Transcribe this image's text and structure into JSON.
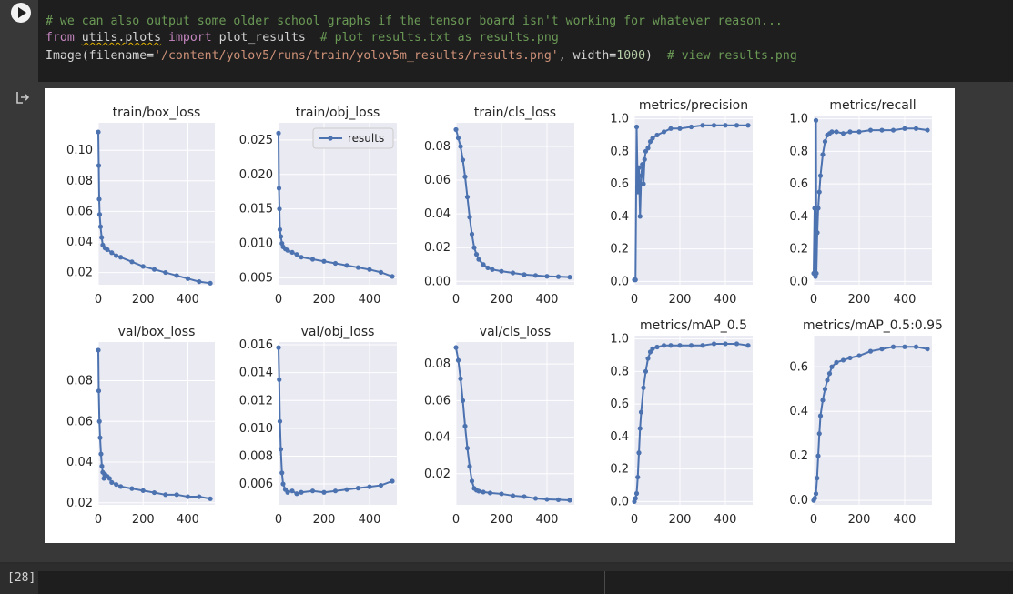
{
  "code_cell": {
    "run_label": "Run cell",
    "lines": [
      [
        {
          "t": "# we can also output some older school graphs if the tensor board isn't working for whatever reason...",
          "c": "cmt"
        }
      ],
      [
        {
          "t": "from",
          "c": "kw"
        },
        {
          "t": " "
        },
        {
          "t": "utils.plots",
          "c": "squig"
        },
        {
          "t": " "
        },
        {
          "t": "import",
          "c": "kw"
        },
        {
          "t": " plot_results  "
        },
        {
          "t": "# plot results.txt as results.png",
          "c": "cmt"
        }
      ],
      [
        {
          "t": "Image(filename="
        },
        {
          "t": "'/content/yolov5/runs/train/yolov5m_results/results.png'",
          "c": "str"
        },
        {
          "t": ", width="
        },
        {
          "t": "1000",
          "c": "num"
        },
        {
          "t": ")  "
        },
        {
          "t": "# view results.png",
          "c": "cmt"
        }
      ]
    ]
  },
  "next_cell": {
    "execution_count": "[28]"
  },
  "accent_color": "#4c72b0",
  "legend_label": "results",
  "chart_data": [
    {
      "type": "line",
      "title": "train/box_loss",
      "xlim": [
        0,
        520
      ],
      "ylim": [
        0.012,
        0.118
      ],
      "xticks": [
        0,
        200,
        400
      ],
      "yticks": [
        0.02,
        0.04,
        0.06,
        0.08,
        0.1
      ],
      "ytick_labels": [
        "0.02",
        "0.04",
        "0.06",
        "0.08",
        "0.10"
      ],
      "x": [
        0,
        2,
        4,
        6,
        10,
        15,
        20,
        30,
        40,
        60,
        80,
        100,
        150,
        200,
        250,
        300,
        350,
        400,
        450,
        500
      ],
      "values": [
        0.112,
        0.09,
        0.068,
        0.058,
        0.05,
        0.043,
        0.038,
        0.036,
        0.035,
        0.033,
        0.031,
        0.03,
        0.027,
        0.024,
        0.022,
        0.02,
        0.018,
        0.016,
        0.014,
        0.013
      ]
    },
    {
      "type": "line",
      "title": "train/obj_loss",
      "xlim": [
        0,
        520
      ],
      "ylim": [
        0.004,
        0.0275
      ],
      "xticks": [
        0,
        200,
        400
      ],
      "yticks": [
        0.005,
        0.01,
        0.015,
        0.02,
        0.025
      ],
      "ytick_labels": [
        "0.005",
        "0.010",
        "0.015",
        "0.020",
        "0.025"
      ],
      "x": [
        0,
        2,
        4,
        6,
        10,
        15,
        20,
        30,
        40,
        60,
        80,
        100,
        150,
        200,
        250,
        300,
        350,
        400,
        450,
        500
      ],
      "values": [
        0.026,
        0.018,
        0.015,
        0.012,
        0.011,
        0.01,
        0.0095,
        0.0092,
        0.009,
        0.0087,
        0.0084,
        0.008,
        0.0077,
        0.0074,
        0.0071,
        0.0068,
        0.0065,
        0.0062,
        0.0058,
        0.0052
      ],
      "legend": "top-right"
    },
    {
      "type": "line",
      "title": "train/cls_loss",
      "xlim": [
        0,
        520
      ],
      "ylim": [
        -0.002,
        0.094
      ],
      "xticks": [
        0,
        200,
        400
      ],
      "yticks": [
        0,
        0.02,
        0.04,
        0.06,
        0.08
      ],
      "ytick_labels": [
        "0.00",
        "0.02",
        "0.04",
        "0.06",
        "0.08"
      ],
      "x": [
        0,
        10,
        20,
        30,
        40,
        50,
        60,
        70,
        80,
        90,
        100,
        120,
        140,
        160,
        200,
        250,
        300,
        350,
        400,
        450,
        500
      ],
      "values": [
        0.09,
        0.085,
        0.08,
        0.072,
        0.062,
        0.05,
        0.038,
        0.028,
        0.02,
        0.016,
        0.013,
        0.01,
        0.008,
        0.007,
        0.006,
        0.005,
        0.004,
        0.0035,
        0.003,
        0.0028,
        0.0025
      ]
    },
    {
      "type": "scatter",
      "title": "metrics/precision",
      "xlim": [
        0,
        520
      ],
      "ylim": [
        -0.02,
        1.02
      ],
      "xticks": [
        0,
        200,
        400
      ],
      "yticks": [
        0,
        0.2,
        0.4,
        0.6,
        0.8,
        1.0
      ],
      "ytick_labels": [
        "0.0",
        "0.2",
        "0.4",
        "0.6",
        "0.8",
        "1.0"
      ],
      "x": [
        0,
        5,
        10,
        15,
        20,
        25,
        30,
        35,
        40,
        45,
        50,
        60,
        70,
        80,
        100,
        130,
        160,
        200,
        250,
        300,
        350,
        400,
        450,
        500
      ],
      "values": [
        0.01,
        0.01,
        0.95,
        0.55,
        0.7,
        0.4,
        0.65,
        0.72,
        0.6,
        0.75,
        0.8,
        0.82,
        0.86,
        0.88,
        0.9,
        0.92,
        0.94,
        0.94,
        0.95,
        0.96,
        0.96,
        0.96,
        0.96,
        0.96
      ]
    },
    {
      "type": "scatter",
      "title": "metrics/recall",
      "xlim": [
        0,
        520
      ],
      "ylim": [
        -0.02,
        1.02
      ],
      "xticks": [
        0,
        200,
        400
      ],
      "yticks": [
        0,
        0.2,
        0.4,
        0.6,
        0.8,
        1.0
      ],
      "ytick_labels": [
        "0.0",
        "0.2",
        "0.4",
        "0.6",
        "0.8",
        "1.0"
      ],
      "x": [
        0,
        4,
        8,
        10,
        12,
        16,
        20,
        25,
        30,
        40,
        50,
        60,
        70,
        80,
        100,
        130,
        160,
        200,
        250,
        300,
        350,
        400,
        450,
        500
      ],
      "values": [
        0.05,
        0.45,
        0.03,
        0.99,
        0.05,
        0.3,
        0.45,
        0.55,
        0.65,
        0.78,
        0.86,
        0.9,
        0.91,
        0.92,
        0.92,
        0.91,
        0.92,
        0.92,
        0.93,
        0.93,
        0.93,
        0.94,
        0.94,
        0.93
      ]
    },
    {
      "type": "line",
      "title": "val/box_loss",
      "xlim": [
        0,
        520
      ],
      "ylim": [
        0.019,
        0.099
      ],
      "xticks": [
        0,
        200,
        400
      ],
      "yticks": [
        0.02,
        0.04,
        0.06,
        0.08
      ],
      "ytick_labels": [
        "0.02",
        "0.04",
        "0.06",
        "0.08"
      ],
      "x": [
        0,
        2,
        5,
        8,
        12,
        16,
        20,
        25,
        30,
        40,
        50,
        60,
        80,
        100,
        150,
        200,
        250,
        300,
        350,
        400,
        450,
        500
      ],
      "values": [
        0.095,
        0.075,
        0.06,
        0.052,
        0.044,
        0.038,
        0.035,
        0.032,
        0.034,
        0.033,
        0.032,
        0.03,
        0.029,
        0.028,
        0.027,
        0.026,
        0.025,
        0.024,
        0.024,
        0.023,
        0.023,
        0.022
      ]
    },
    {
      "type": "line",
      "title": "val/obj_loss",
      "xlim": [
        0,
        520
      ],
      "ylim": [
        0.0045,
        0.0162
      ],
      "xticks": [
        0,
        200,
        400
      ],
      "yticks": [
        0.006,
        0.008,
        0.01,
        0.012,
        0.014,
        0.016
      ],
      "ytick_labels": [
        "0.006",
        "0.008",
        "0.010",
        "0.012",
        "0.014",
        "0.016"
      ],
      "x": [
        0,
        3,
        6,
        10,
        15,
        20,
        30,
        40,
        60,
        80,
        100,
        150,
        200,
        250,
        300,
        350,
        400,
        450,
        500
      ],
      "values": [
        0.0158,
        0.0135,
        0.0105,
        0.0085,
        0.0068,
        0.006,
        0.0056,
        0.0054,
        0.0055,
        0.0053,
        0.0054,
        0.0055,
        0.0054,
        0.0055,
        0.0056,
        0.0057,
        0.0058,
        0.0059,
        0.0062
      ]
    },
    {
      "type": "line",
      "title": "val/cls_loss",
      "xlim": [
        0,
        520
      ],
      "ylim": [
        0.003,
        0.092
      ],
      "xticks": [
        0,
        200,
        400
      ],
      "yticks": [
        0.02,
        0.04,
        0.06,
        0.08
      ],
      "ytick_labels": [
        "0.02",
        "0.04",
        "0.06",
        "0.08"
      ],
      "x": [
        0,
        10,
        20,
        30,
        40,
        50,
        60,
        70,
        80,
        90,
        100,
        120,
        150,
        200,
        250,
        300,
        350,
        400,
        450,
        500
      ],
      "values": [
        0.089,
        0.082,
        0.072,
        0.06,
        0.046,
        0.034,
        0.024,
        0.016,
        0.012,
        0.011,
        0.0105,
        0.01,
        0.0095,
        0.009,
        0.008,
        0.0075,
        0.0065,
        0.006,
        0.0058,
        0.0055
      ]
    },
    {
      "type": "scatter",
      "title": "metrics/mAP_0.5",
      "xlim": [
        0,
        520
      ],
      "ylim": [
        -0.02,
        1.02
      ],
      "xticks": [
        0,
        200,
        400
      ],
      "yticks": [
        0,
        0.2,
        0.4,
        0.6,
        0.8,
        1.0
      ],
      "ytick_labels": [
        "0.0",
        "0.2",
        "0.4",
        "0.6",
        "0.8",
        "1.0"
      ],
      "x": [
        0,
        5,
        10,
        15,
        20,
        25,
        30,
        40,
        50,
        60,
        70,
        80,
        100,
        130,
        160,
        200,
        250,
        300,
        350,
        400,
        450,
        500
      ],
      "values": [
        0.0,
        0.02,
        0.05,
        0.15,
        0.3,
        0.45,
        0.55,
        0.7,
        0.8,
        0.88,
        0.92,
        0.94,
        0.95,
        0.96,
        0.96,
        0.96,
        0.96,
        0.96,
        0.97,
        0.97,
        0.97,
        0.96
      ]
    },
    {
      "type": "scatter",
      "title": "metrics/mAP_0.5:0.95",
      "xlim": [
        0,
        520
      ],
      "ylim": [
        -0.02,
        0.74
      ],
      "xticks": [
        0,
        200,
        400
      ],
      "yticks": [
        0,
        0.2,
        0.4,
        0.6
      ],
      "ytick_labels": [
        "0.0",
        "0.2",
        "0.4",
        "0.6"
      ],
      "x": [
        0,
        5,
        10,
        15,
        20,
        25,
        30,
        40,
        50,
        60,
        70,
        80,
        100,
        130,
        160,
        200,
        250,
        300,
        350,
        400,
        450,
        500
      ],
      "values": [
        0.0,
        0.01,
        0.03,
        0.1,
        0.2,
        0.3,
        0.38,
        0.45,
        0.5,
        0.54,
        0.57,
        0.6,
        0.62,
        0.63,
        0.64,
        0.65,
        0.67,
        0.68,
        0.69,
        0.69,
        0.69,
        0.68
      ]
    }
  ]
}
